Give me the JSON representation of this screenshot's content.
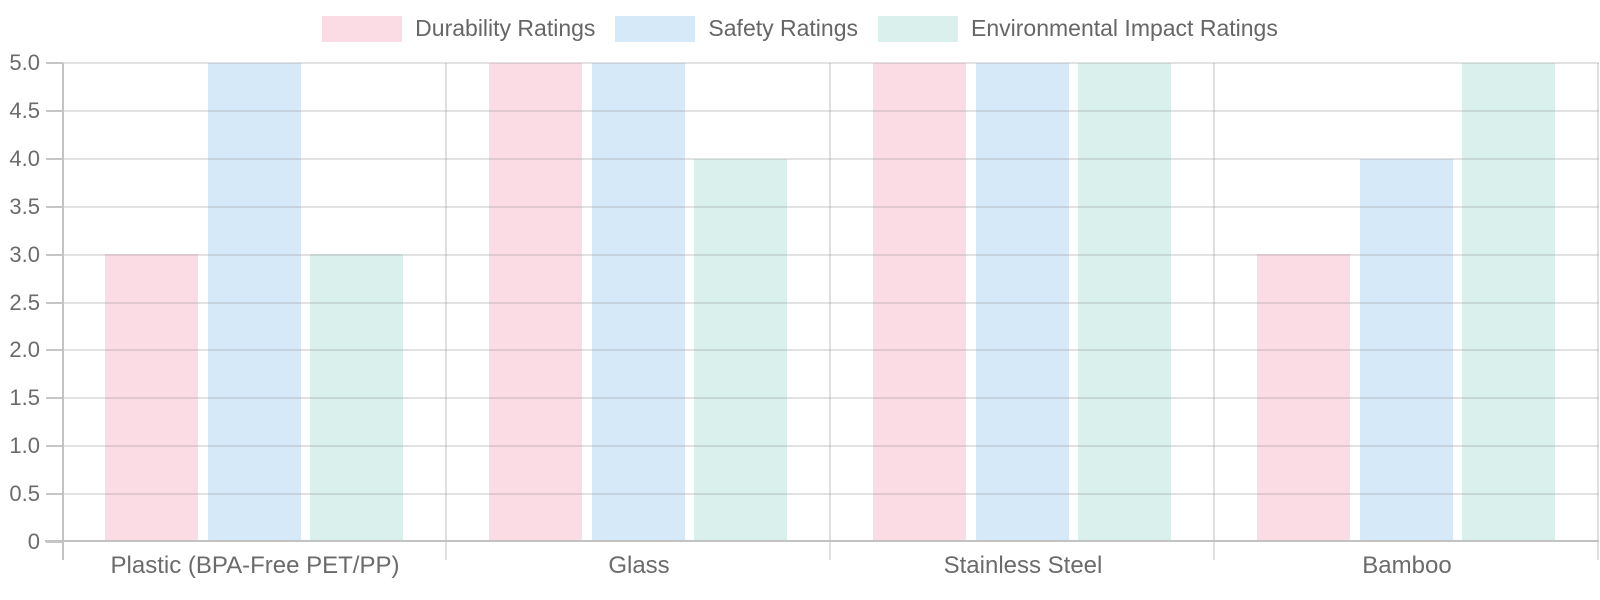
{
  "chart_data": {
    "type": "bar",
    "title": "",
    "categories": [
      "Plastic (BPA-Free PET/PP)",
      "Glass",
      "Stainless Steel",
      "Bamboo"
    ],
    "series": [
      {
        "name": "Durability Ratings",
        "color": "#fbdce4",
        "values": [
          3,
          5,
          5,
          3
        ]
      },
      {
        "name": "Safety Ratings",
        "color": "#d6e9f8",
        "values": [
          5,
          5,
          5,
          4
        ]
      },
      {
        "name": "Environmental Impact Ratings",
        "color": "#d9f0ec",
        "values": [
          3,
          4,
          5,
          5
        ]
      }
    ],
    "xlabel": "",
    "ylabel": "",
    "ylim": [
      0,
      5
    ],
    "ytick_step": 0.5,
    "ytick_labels": [
      "5.0",
      "4.5",
      "4.0",
      "3.5",
      "3.0",
      "2.5",
      "2.0",
      "1.5",
      "1.0",
      "0.5",
      "0"
    ],
    "grid": true,
    "legend_position": "top-center",
    "style_colors": {
      "grid_line": "#e4e4e4",
      "axis_line": "#c2c2c2",
      "separator_line": "#dadada",
      "text": "#6b6b6b",
      "legend_text": "#666666"
    }
  }
}
